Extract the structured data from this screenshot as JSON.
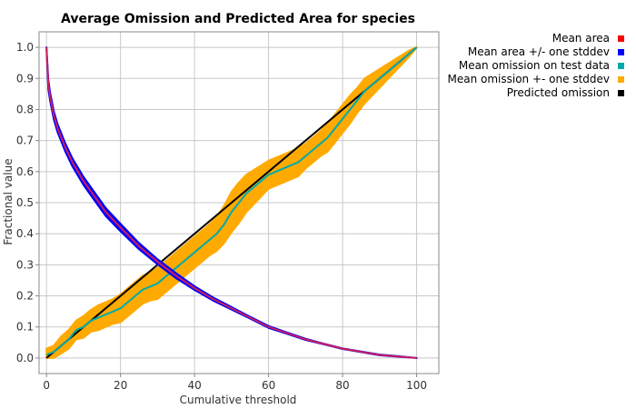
{
  "chart_data": {
    "type": "line",
    "title": "Average Omission and Predicted Area for species",
    "xlabel": "Cumulative threshold",
    "ylabel": "Fractional value",
    "xlim": [
      -2,
      106
    ],
    "ylim": [
      -0.05,
      1.05
    ],
    "x_ticks": [
      0,
      20,
      40,
      60,
      80,
      100
    ],
    "y_ticks": [
      0.0,
      0.1,
      0.2,
      0.3,
      0.4,
      0.5,
      0.6,
      0.7,
      0.8,
      0.9,
      1.0
    ],
    "grid": true,
    "legend_position": "top-right",
    "series": [
      {
        "name": "Mean area",
        "color": "#ff0000",
        "x": [
          0,
          0.5,
          1,
          2,
          3,
          5,
          7,
          10,
          13,
          16,
          20,
          25,
          30,
          35,
          40,
          45,
          50,
          55,
          60,
          65,
          70,
          75,
          80,
          85,
          90,
          95,
          100
        ],
        "y": [
          1.0,
          0.88,
          0.84,
          0.78,
          0.74,
          0.68,
          0.63,
          0.57,
          0.52,
          0.47,
          0.42,
          0.36,
          0.31,
          0.265,
          0.225,
          0.19,
          0.16,
          0.13,
          0.1,
          0.08,
          0.06,
          0.045,
          0.03,
          0.02,
          0.01,
          0.005,
          0.0
        ]
      },
      {
        "name": "Mean area +/- one stddev",
        "color": "#0000ff",
        "x": [
          0,
          0.5,
          1,
          2,
          3,
          5,
          7,
          10,
          13,
          16,
          20,
          25,
          30,
          35,
          40,
          45,
          50,
          55,
          60,
          65,
          70,
          75,
          80,
          85,
          90,
          95,
          100
        ],
        "upper": [
          1.0,
          0.895,
          0.853,
          0.793,
          0.753,
          0.693,
          0.643,
          0.583,
          0.533,
          0.483,
          0.432,
          0.37,
          0.318,
          0.273,
          0.231,
          0.195,
          0.164,
          0.133,
          0.103,
          0.082,
          0.062,
          0.046,
          0.031,
          0.021,
          0.011,
          0.006,
          0.0
        ],
        "lower": [
          1.0,
          0.865,
          0.827,
          0.767,
          0.727,
          0.667,
          0.617,
          0.557,
          0.507,
          0.457,
          0.408,
          0.35,
          0.302,
          0.257,
          0.219,
          0.185,
          0.156,
          0.127,
          0.097,
          0.078,
          0.058,
          0.044,
          0.029,
          0.019,
          0.009,
          0.004,
          0.0
        ]
      },
      {
        "name": "Mean omission on test data",
        "color": "#00aaaa",
        "x": [
          0,
          2,
          4,
          6,
          8,
          10,
          12,
          14,
          16,
          18,
          20,
          22,
          24,
          26,
          28,
          30,
          32,
          34,
          36,
          38,
          40,
          42,
          44,
          46,
          48,
          50,
          52,
          54,
          56,
          58,
          60,
          62,
          64,
          66,
          68,
          70,
          72,
          74,
          76,
          78,
          80,
          82,
          84,
          86,
          88,
          90,
          92,
          94,
          96,
          98,
          100
        ],
        "y": [
          0.01,
          0.02,
          0.04,
          0.06,
          0.09,
          0.1,
          0.12,
          0.13,
          0.14,
          0.15,
          0.16,
          0.18,
          0.2,
          0.22,
          0.23,
          0.24,
          0.26,
          0.28,
          0.3,
          0.32,
          0.34,
          0.36,
          0.38,
          0.4,
          0.43,
          0.47,
          0.5,
          0.53,
          0.55,
          0.57,
          0.59,
          0.6,
          0.61,
          0.62,
          0.63,
          0.65,
          0.67,
          0.69,
          0.71,
          0.74,
          0.77,
          0.8,
          0.83,
          0.86,
          0.88,
          0.9,
          0.92,
          0.94,
          0.96,
          0.98,
          1.0
        ]
      },
      {
        "name": "Mean omission +- one stddev",
        "color": "#ffaa00",
        "x": [
          0,
          2,
          4,
          6,
          8,
          10,
          12,
          14,
          16,
          18,
          20,
          22,
          24,
          26,
          28,
          30,
          32,
          34,
          36,
          38,
          40,
          42,
          44,
          46,
          48,
          50,
          52,
          54,
          56,
          58,
          60,
          62,
          64,
          66,
          68,
          70,
          72,
          74,
          76,
          78,
          80,
          82,
          84,
          86,
          88,
          90,
          92,
          94,
          96,
          98,
          100
        ],
        "upper": [
          0.03,
          0.04,
          0.07,
          0.09,
          0.12,
          0.135,
          0.155,
          0.17,
          0.18,
          0.19,
          0.205,
          0.225,
          0.245,
          0.265,
          0.275,
          0.29,
          0.31,
          0.33,
          0.35,
          0.37,
          0.39,
          0.41,
          0.43,
          0.455,
          0.49,
          0.535,
          0.565,
          0.59,
          0.605,
          0.62,
          0.635,
          0.645,
          0.655,
          0.665,
          0.675,
          0.69,
          0.71,
          0.73,
          0.755,
          0.785,
          0.815,
          0.845,
          0.87,
          0.9,
          0.915,
          0.93,
          0.945,
          0.96,
          0.975,
          0.99,
          1.0
        ],
        "lower": [
          0.0,
          0.0,
          0.015,
          0.03,
          0.06,
          0.065,
          0.085,
          0.09,
          0.1,
          0.11,
          0.115,
          0.135,
          0.155,
          0.175,
          0.185,
          0.19,
          0.21,
          0.23,
          0.25,
          0.27,
          0.29,
          0.31,
          0.33,
          0.345,
          0.37,
          0.405,
          0.435,
          0.47,
          0.495,
          0.52,
          0.545,
          0.555,
          0.565,
          0.575,
          0.585,
          0.61,
          0.63,
          0.65,
          0.665,
          0.695,
          0.725,
          0.755,
          0.79,
          0.82,
          0.845,
          0.87,
          0.895,
          0.92,
          0.945,
          0.97,
          1.0
        ]
      },
      {
        "name": "Predicted omission",
        "color": "#000000",
        "x": [
          0,
          100
        ],
        "y": [
          0,
          1
        ]
      }
    ]
  }
}
